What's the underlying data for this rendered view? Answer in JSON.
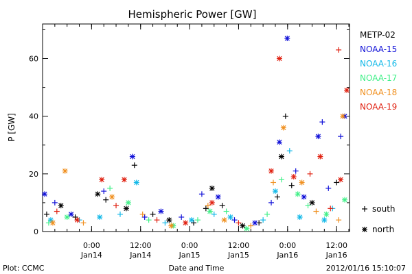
{
  "chart_data": {
    "type": "scatter",
    "title": "Hemispheric Power [GW]",
    "xlabel": "Date and Time",
    "ylabel": "P [GW]",
    "x_range": [
      "2012-01-13 12:00",
      "2012-01-16 15:10"
    ],
    "ylim": [
      0,
      72
    ],
    "y_ticks": [
      0,
      20,
      40,
      60
    ],
    "x_ticks": [
      {
        "x": "2012-01-14 00:00",
        "time": "0:00",
        "date": "Jan14"
      },
      {
        "x": "2012-01-14 12:00",
        "time": "12:00",
        "date": "Jan14"
      },
      {
        "x": "2012-01-15 00:00",
        "time": "0:00",
        "date": "Jan15"
      },
      {
        "x": "2012-01-15 12:00",
        "time": "12:00",
        "date": "Jan15"
      },
      {
        "x": "2012-01-16 00:00",
        "time": "0:00",
        "date": "Jan16"
      },
      {
        "x": "2012-01-16 12:00",
        "time": "12:00",
        "date": "Jan16"
      }
    ],
    "grid": false,
    "legend_position": "right",
    "marker_legend": [
      {
        "marker": "+",
        "label": "south"
      },
      {
        "marker": "*",
        "label": "north"
      }
    ],
    "series": [
      {
        "name": "METP-02",
        "color": "#000000",
        "points": [
          {
            "x": "2012-01-13 13:00",
            "y": 6,
            "m": "+"
          },
          {
            "x": "2012-01-13 16:30",
            "y": 9,
            "m": "*"
          },
          {
            "x": "2012-01-13 20:00",
            "y": 5,
            "m": "+"
          },
          {
            "x": "2012-01-14 01:30",
            "y": 13,
            "m": "*"
          },
          {
            "x": "2012-01-14 03:30",
            "y": 11,
            "m": "+"
          },
          {
            "x": "2012-01-14 08:30",
            "y": 8,
            "m": "*"
          },
          {
            "x": "2012-01-14 10:30",
            "y": 23,
            "m": "+"
          },
          {
            "x": "2012-01-14 15:00",
            "y": 6,
            "m": "+"
          },
          {
            "x": "2012-01-14 19:00",
            "y": 4,
            "m": "*"
          },
          {
            "x": "2012-01-15 01:00",
            "y": 3,
            "m": "+"
          },
          {
            "x": "2012-01-15 04:00",
            "y": 8,
            "m": "+"
          },
          {
            "x": "2012-01-15 05:30",
            "y": 15,
            "m": "*"
          },
          {
            "x": "2012-01-15 08:00",
            "y": 9,
            "m": "+"
          },
          {
            "x": "2012-01-15 13:00",
            "y": 2,
            "m": "*"
          },
          {
            "x": "2012-01-15 17:00",
            "y": 3,
            "m": "+"
          },
          {
            "x": "2012-01-15 21:30",
            "y": 12,
            "m": "+"
          },
          {
            "x": "2012-01-15 22:30",
            "y": 26,
            "m": "*"
          },
          {
            "x": "2012-01-15 23:30",
            "y": 40,
            "m": "+"
          },
          {
            "x": "2012-01-16 01:00",
            "y": 16,
            "m": "+"
          },
          {
            "x": "2012-01-16 06:00",
            "y": 10,
            "m": "*"
          },
          {
            "x": "2012-01-16 12:00",
            "y": 17,
            "m": "+"
          }
        ]
      },
      {
        "name": "NOAA-15",
        "color": "#1010d8",
        "points": [
          {
            "x": "2012-01-13 12:30",
            "y": 13,
            "m": "*"
          },
          {
            "x": "2012-01-13 15:00",
            "y": 10,
            "m": "+"
          },
          {
            "x": "2012-01-13 19:00",
            "y": 6,
            "m": "*"
          },
          {
            "x": "2012-01-14 03:00",
            "y": 14,
            "m": "+"
          },
          {
            "x": "2012-01-14 10:00",
            "y": 26,
            "m": "*"
          },
          {
            "x": "2012-01-14 13:00",
            "y": 5,
            "m": "+"
          },
          {
            "x": "2012-01-14 17:00",
            "y": 7,
            "m": "*"
          },
          {
            "x": "2012-01-14 22:00",
            "y": 5,
            "m": "+"
          },
          {
            "x": "2012-01-15 03:00",
            "y": 13,
            "m": "+"
          },
          {
            "x": "2012-01-15 07:00",
            "y": 12,
            "m": "*"
          },
          {
            "x": "2012-01-15 11:00",
            "y": 4,
            "m": "+"
          },
          {
            "x": "2012-01-15 16:00",
            "y": 3,
            "m": "*"
          },
          {
            "x": "2012-01-15 20:00",
            "y": 10,
            "m": "+"
          },
          {
            "x": "2012-01-15 22:00",
            "y": 31,
            "m": "*"
          },
          {
            "x": "2012-01-15 23:55",
            "y": 67,
            "m": "*"
          },
          {
            "x": "2012-01-16 02:00",
            "y": 21,
            "m": "+"
          },
          {
            "x": "2012-01-16 04:00",
            "y": 12,
            "m": "*"
          },
          {
            "x": "2012-01-16 07:30",
            "y": 33,
            "m": "*"
          },
          {
            "x": "2012-01-16 08:30",
            "y": 38,
            "m": "+"
          },
          {
            "x": "2012-01-16 10:00",
            "y": 15,
            "m": "+"
          },
          {
            "x": "2012-01-16 13:00",
            "y": 33,
            "m": "+"
          },
          {
            "x": "2012-01-16 14:00",
            "y": 40,
            "m": "*"
          }
        ]
      },
      {
        "name": "NOAA-16",
        "color": "#10b8e8",
        "points": [
          {
            "x": "2012-01-13 14:00",
            "y": 4,
            "m": "*"
          },
          {
            "x": "2012-01-13 21:00",
            "y": 4,
            "m": "+"
          },
          {
            "x": "2012-01-14 02:00",
            "y": 5,
            "m": "*"
          },
          {
            "x": "2012-01-14 07:00",
            "y": 6,
            "m": "+"
          },
          {
            "x": "2012-01-14 11:00",
            "y": 17,
            "m": "*"
          },
          {
            "x": "2012-01-14 18:00",
            "y": 3,
            "m": "+"
          },
          {
            "x": "2012-01-15 00:30",
            "y": 4,
            "m": "*"
          },
          {
            "x": "2012-01-15 06:00",
            "y": 6,
            "m": "+"
          },
          {
            "x": "2012-01-15 10:00",
            "y": 5,
            "m": "*"
          },
          {
            "x": "2012-01-15 18:00",
            "y": 4,
            "m": "+"
          },
          {
            "x": "2012-01-15 21:00",
            "y": 14,
            "m": "*"
          },
          {
            "x": "2012-01-16 00:30",
            "y": 28,
            "m": "+"
          },
          {
            "x": "2012-01-16 03:00",
            "y": 5,
            "m": "*"
          },
          {
            "x": "2012-01-16 09:00",
            "y": 4,
            "m": "*"
          },
          {
            "x": "2012-01-16 11:00",
            "y": 8,
            "m": "+"
          }
        ]
      },
      {
        "name": "NOAA-17",
        "color": "#40f088",
        "points": [
          {
            "x": "2012-01-13 13:30",
            "y": 3,
            "m": "+"
          },
          {
            "x": "2012-01-13 18:00",
            "y": 5,
            "m": "*"
          },
          {
            "x": "2012-01-14 04:30",
            "y": 15,
            "m": "+"
          },
          {
            "x": "2012-01-14 09:00",
            "y": 10,
            "m": "*"
          },
          {
            "x": "2012-01-14 14:00",
            "y": 4,
            "m": "+"
          },
          {
            "x": "2012-01-14 20:00",
            "y": 2,
            "m": "*"
          },
          {
            "x": "2012-01-15 02:00",
            "y": 4,
            "m": "+"
          },
          {
            "x": "2012-01-15 05:00",
            "y": 7,
            "m": "*"
          },
          {
            "x": "2012-01-15 09:00",
            "y": 7,
            "m": "+"
          },
          {
            "x": "2012-01-15 14:00",
            "y": 1,
            "m": "*"
          },
          {
            "x": "2012-01-15 19:00",
            "y": 6,
            "m": "+"
          },
          {
            "x": "2012-01-15 22:30",
            "y": 18,
            "m": "+"
          },
          {
            "x": "2012-01-16 02:30",
            "y": 13,
            "m": "*"
          },
          {
            "x": "2012-01-16 05:00",
            "y": 9,
            "m": "+"
          },
          {
            "x": "2012-01-16 09:30",
            "y": 6,
            "m": "*"
          },
          {
            "x": "2012-01-16 14:00",
            "y": 11,
            "m": "*"
          }
        ]
      },
      {
        "name": "NOAA-18",
        "color": "#f09020",
        "points": [
          {
            "x": "2012-01-13 14:30",
            "y": 3,
            "m": "*"
          },
          {
            "x": "2012-01-13 17:30",
            "y": 21,
            "m": "*"
          },
          {
            "x": "2012-01-13 22:00",
            "y": 3,
            "m": "+"
          },
          {
            "x": "2012-01-14 05:00",
            "y": 12,
            "m": "*"
          },
          {
            "x": "2012-01-14 12:30",
            "y": 6,
            "m": "+"
          },
          {
            "x": "2012-01-14 19:30",
            "y": 2,
            "m": "*"
          },
          {
            "x": "2012-01-15 04:30",
            "y": 9,
            "m": "+"
          },
          {
            "x": "2012-01-15 08:30",
            "y": 4,
            "m": "*"
          },
          {
            "x": "2012-01-15 15:00",
            "y": 2,
            "m": "+"
          },
          {
            "x": "2012-01-15 20:30",
            "y": 17,
            "m": "+"
          },
          {
            "x": "2012-01-15 23:00",
            "y": 36,
            "m": "*"
          },
          {
            "x": "2012-01-16 03:30",
            "y": 17,
            "m": "*"
          },
          {
            "x": "2012-01-16 07:00",
            "y": 7,
            "m": "+"
          },
          {
            "x": "2012-01-16 12:30",
            "y": 4,
            "m": "+"
          },
          {
            "x": "2012-01-16 13:30",
            "y": 40,
            "m": "*"
          }
        ]
      },
      {
        "name": "NOAA-19",
        "color": "#e02010",
        "points": [
          {
            "x": "2012-01-13 15:30",
            "y": 7,
            "m": "+"
          },
          {
            "x": "2012-01-13 20:30",
            "y": 4,
            "m": "*"
          },
          {
            "x": "2012-01-14 02:30",
            "y": 18,
            "m": "*"
          },
          {
            "x": "2012-01-14 06:00",
            "y": 9,
            "m": "+"
          },
          {
            "x": "2012-01-14 08:00",
            "y": 18,
            "m": "*"
          },
          {
            "x": "2012-01-14 16:00",
            "y": 4,
            "m": "+"
          },
          {
            "x": "2012-01-14 23:00",
            "y": 3,
            "m": "*"
          },
          {
            "x": "2012-01-15 05:30",
            "y": 10,
            "m": "*"
          },
          {
            "x": "2012-01-15 12:00",
            "y": 3,
            "m": "+"
          },
          {
            "x": "2012-01-15 20:00",
            "y": 21,
            "m": "*"
          },
          {
            "x": "2012-01-15 22:00",
            "y": 60,
            "m": "*"
          },
          {
            "x": "2012-01-16 01:30",
            "y": 19,
            "m": "*"
          },
          {
            "x": "2012-01-16 05:30",
            "y": 20,
            "m": "+"
          },
          {
            "x": "2012-01-16 08:00",
            "y": 26,
            "m": "*"
          },
          {
            "x": "2012-01-16 10:30",
            "y": 8,
            "m": "+"
          },
          {
            "x": "2012-01-16 12:30",
            "y": 63,
            "m": "+"
          },
          {
            "x": "2012-01-16 13:00",
            "y": 18,
            "m": "*"
          },
          {
            "x": "2012-01-16 14:30",
            "y": 49,
            "m": "*"
          }
        ]
      }
    ]
  },
  "footer": {
    "left": "Plot: CCMC",
    "center": "Date and Time",
    "right": "2012/01/16 15:10:07"
  }
}
